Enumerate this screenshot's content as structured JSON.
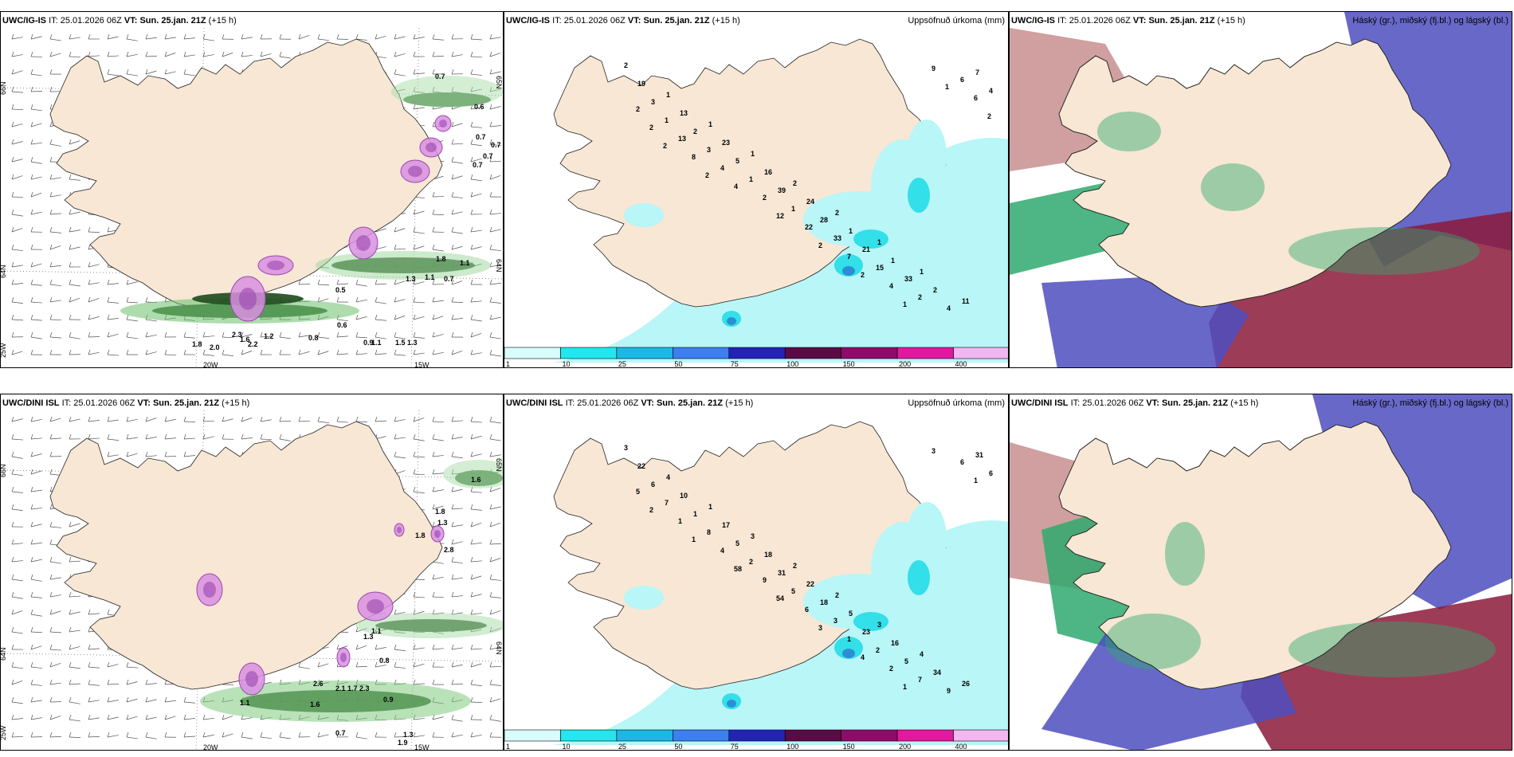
{
  "colors": {
    "land": "#f7e7d4",
    "land_gray": "#ecdcc8",
    "sea": "#ffffff",
    "precip_light": "#b8f6f8",
    "precip_mid": "#33dfe8",
    "precip_dark": "#2b8fd6",
    "snow_pink": "#d98fe0",
    "snow_purple": "#9a46b0",
    "cloud_high": "#c88e8e",
    "cloud_mid": "#4d4dbf",
    "cloud_low": "#2fa96e",
    "cloud_dark": "#8c1a3a"
  },
  "rows": [
    {
      "id": "ig",
      "panels": [
        {
          "type": "wind",
          "title": {
            "model": "UWC/IG-IS",
            "it_label": "IT:",
            "it": "25.01.2026 06Z",
            "vt_label": "VT:",
            "vt": "Sun. 25.jan. 21Z",
            "lead": "(+15 h)"
          },
          "lat_labels": [
            "66N",
            "64N",
            "25W"
          ],
          "lon_labels": [
            "20W",
            "15W",
            "65N",
            "64N"
          ],
          "values": [
            "0.7",
            "0.6",
            "0.7",
            "0.7",
            "0.7",
            "0.7",
            "1.8",
            "1.1",
            "1.3",
            "1.1",
            "0.7",
            "0.5",
            "0.6",
            "0.9",
            "1.5",
            "1.3",
            "1.1",
            "2.3",
            "1.2",
            "2.2",
            "2.0",
            "1.8",
            "0.8",
            "1.6"
          ]
        },
        {
          "type": "precip",
          "title": {
            "model": "UWC/IG-IS",
            "it_label": "IT:",
            "it": "25.01.2026 06Z",
            "vt_label": "VT:",
            "vt": "Sun. 25.jan. 21Z",
            "lead": "(+15 h)"
          },
          "right_title": "Uppsöfnuð úrkoma (mm)",
          "values": [
            "2",
            "1",
            "1",
            "1",
            "2",
            "2",
            "1",
            "1",
            "11",
            "19",
            "13",
            "23",
            "16",
            "24",
            "1",
            "1",
            "2",
            "7",
            "3",
            "2",
            "5",
            "39",
            "28",
            "21",
            "33",
            "4",
            "4",
            "1",
            "3",
            "1",
            "1",
            "33",
            "15",
            "2",
            "6",
            "2",
            "13",
            "4",
            "2",
            "22",
            "7",
            "4",
            "9",
            "6",
            "2",
            "8",
            "4",
            "12",
            "2",
            "2",
            "1",
            "1",
            "2",
            "2",
            "2"
          ]
        },
        {
          "type": "cloud",
          "title": {
            "model": "UWC/IG-IS",
            "it_label": "IT:",
            "it": "25.01.2026 06Z",
            "vt_label": "VT:",
            "vt": "Sun. 25.jan. 21Z",
            "lead": "(+15 h)"
          },
          "right_title": "Háský (gr.), miðský (fj.bl.) og lágský (bl.)"
        }
      ]
    },
    {
      "id": "dini",
      "panels": [
        {
          "type": "wind",
          "title": {
            "model": "UWC/DINI ISL",
            "it_label": "IT:",
            "it": "25.01.2026 06Z",
            "vt_label": "VT:",
            "vt": "Sun. 25.jan. 21Z",
            "lead": "(+15 h)"
          },
          "lat_labels": [
            "66N",
            "64N",
            "25W"
          ],
          "lon_labels": [
            "20W",
            "15W",
            "65N",
            "64N"
          ],
          "values": [
            "1.6",
            "1.8",
            "1.3",
            "2.8",
            "1.8",
            "0.8",
            "1.3",
            "2.3",
            "1.1",
            "2.6",
            "2.1",
            "1.7",
            "1.6",
            "0.9",
            "0.7",
            "1.3",
            "1.9",
            "1.1"
          ]
        },
        {
          "type": "precip",
          "title": {
            "model": "UWC/DINI ISL",
            "it_label": "IT:",
            "it": "25.01.2026 06Z",
            "vt_label": "VT:",
            "vt": "Sun. 25.jan. 21Z",
            "lead": "(+15 h)"
          },
          "right_title": "Uppsöfnuð úrkoma (mm)",
          "values": [
            "3",
            "4",
            "1",
            "3",
            "2",
            "2",
            "3",
            "4",
            "26",
            "22",
            "10",
            "17",
            "18",
            "22",
            "5",
            "16",
            "34",
            "31",
            "6",
            "1",
            "5",
            "31",
            "18",
            "23",
            "5",
            "9",
            "6",
            "7",
            "8",
            "2",
            "5",
            "3",
            "2",
            "7",
            "6",
            "5",
            "1",
            "4",
            "9",
            "6",
            "1",
            "2",
            "3",
            "1",
            "2",
            "1",
            "58",
            "54",
            "3",
            "4",
            "1"
          ]
        },
        {
          "type": "cloud",
          "title": {
            "model": "UWC/DINI ISL",
            "it_label": "IT:",
            "it": "25.01.2026 06Z",
            "vt_label": "VT:",
            "vt": "Sun. 25.jan. 21Z",
            "lead": "(+15 h)"
          },
          "right_title": "Háský (gr.), miðský (fj.bl.) og lágský (bl.)"
        }
      ]
    }
  ],
  "colorbar": {
    "ticks": [
      "1",
      "10",
      "25",
      "50",
      "75",
      "100",
      "150",
      "200",
      "400"
    ],
    "colors": [
      "#d8fbfb",
      "#22e7ee",
      "#1bb8e6",
      "#3d7ff0",
      "#2323b8",
      "#5b0a45",
      "#8f0b6a",
      "#e119a0",
      "#f2b6f0"
    ]
  }
}
